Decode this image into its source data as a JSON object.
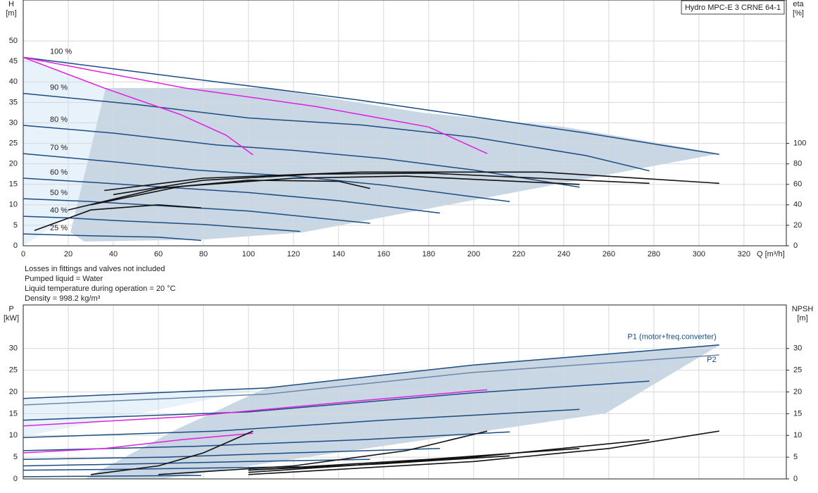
{
  "chart_data": [
    {
      "type": "line",
      "title": "Hydro MPC-E 3 CRNE 64-1",
      "ylabel": "H",
      "yunit": "[m]",
      "y2label": "eta",
      "y2unit": "[%]",
      "xlabel": "Q [m³/h]",
      "xlim": [
        0,
        338.8
      ],
      "xticks": [
        0,
        20,
        40,
        60,
        80,
        100,
        120,
        140,
        160,
        180,
        200,
        220,
        240,
        260,
        280,
        300,
        320
      ],
      "ylim": [
        0,
        60
      ],
      "yticks": [
        0,
        5,
        10,
        15,
        20,
        25,
        30,
        35,
        40,
        45,
        50
      ],
      "y2lim": [
        0,
        240
      ],
      "y2ticks": [
        0,
        20,
        40,
        60,
        80,
        100
      ],
      "grid": true,
      "series": [
        {
          "name": "100 %",
          "color": "#1b4c82",
          "x": [
            0,
            50,
            108,
            150,
            200,
            250,
            309
          ],
          "values": [
            46,
            42.5,
            38.5,
            35.5,
            31.5,
            27.5,
            22.3
          ]
        },
        {
          "name": "90 %",
          "color": "#1b4c82",
          "x": [
            0,
            50,
            100,
            150,
            200,
            250,
            278
          ],
          "values": [
            37.2,
            34.5,
            31.2,
            29.5,
            26.5,
            22,
            18.3
          ]
        },
        {
          "name": "80 %",
          "color": "#1b4c82",
          "x": [
            0,
            40,
            86,
            120,
            160,
            200,
            247
          ],
          "values": [
            29.4,
            27.5,
            24.6,
            23.3,
            21.3,
            18.5,
            14.3
          ]
        },
        {
          "name": "70 %",
          "color": "#1b4c82",
          "x": [
            0,
            40,
            76,
            120,
            160,
            216
          ],
          "values": [
            22.5,
            20.5,
            18.5,
            17,
            14.8,
            10.8
          ]
        },
        {
          "name": "60 %",
          "color": "#1b4c82",
          "x": [
            0,
            30,
            63,
            100,
            140,
            185
          ],
          "values": [
            16.5,
            15.5,
            14.3,
            13,
            11,
            8
          ]
        },
        {
          "name": "50 %",
          "color": "#1b4c82",
          "x": [
            0,
            30,
            54,
            100,
            154
          ],
          "values": [
            11.5,
            10.8,
            10,
            8.5,
            5.5
          ]
        },
        {
          "name": "40 %",
          "color": "#1b4c82",
          "x": [
            0,
            20,
            43,
            80,
            123
          ],
          "values": [
            7.2,
            6.8,
            6.1,
            5.2,
            3.5
          ]
        },
        {
          "name": "25 %",
          "color": "#1b4c82",
          "x": [
            0,
            26,
            60,
            79
          ],
          "values": [
            2.9,
            2.5,
            2.1,
            1.3
          ]
        },
        {
          "color": "#e020e0",
          "x": [
            0,
            36,
            70,
            90,
            102
          ],
          "values": [
            46,
            38.5,
            32,
            27,
            22.2
          ]
        },
        {
          "color": "#e020e0",
          "x": [
            0,
            72,
            130,
            180,
            206
          ],
          "values": [
            46,
            38.5,
            34,
            29,
            22.5
          ]
        },
        {
          "color": "#111111",
          "axis": "y2",
          "x": [
            36,
            80,
            150,
            230,
            309
          ],
          "values": [
            54,
            66,
            72,
            72,
            61
          ]
        },
        {
          "color": "#111111",
          "axis": "y2",
          "x": [
            40,
            80,
            130,
            180,
            278
          ],
          "values": [
            50,
            64,
            70,
            71,
            61
          ]
        },
        {
          "color": "#111111",
          "axis": "y2",
          "x": [
            30,
            70,
            120,
            170,
            247
          ],
          "values": [
            40,
            58,
            66,
            68,
            60
          ]
        },
        {
          "color": "#111111",
          "axis": "y2",
          "x": [
            20,
            60,
            100,
            140,
            154
          ],
          "values": [
            35,
            56,
            64,
            63,
            56
          ]
        },
        {
          "color": "#111111",
          "axis": "y2",
          "x": [
            5,
            30,
            60,
            79
          ],
          "values": [
            15,
            35,
            40,
            37
          ]
        }
      ],
      "notes": [
        "Losses in fittings and valves not included",
        "Pumped liquid = Water",
        "Liquid temperature during operation = 20 °C",
        "Density = 998.2 kg/m³"
      ]
    },
    {
      "type": "line",
      "ylabel": "P",
      "yunit": "[kW]",
      "y2label": "NPSH",
      "y2unit": "[m]",
      "xlim": [
        0,
        338.8
      ],
      "ylim": [
        0,
        40
      ],
      "yticks": [
        0,
        5,
        10,
        15,
        20,
        25,
        30
      ],
      "y2lim": [
        0,
        40
      ],
      "y2ticks": [
        0,
        5,
        10,
        15,
        20,
        25,
        30
      ],
      "grid": true,
      "series": [
        {
          "name": "P1 (motor+freq.converter)",
          "color": "#1b4c82",
          "x": [
            0,
            108,
            200,
            309
          ],
          "values": [
            18.5,
            20.9,
            26.2,
            30.8
          ]
        },
        {
          "name": "P2",
          "color": "#6a88aa",
          "x": [
            0,
            108,
            200,
            309
          ],
          "values": [
            17,
            19.5,
            24.5,
            28.5
          ]
        },
        {
          "color": "#1b4c82",
          "x": [
            0,
            100,
            200,
            278
          ],
          "values": [
            13.5,
            15.4,
            19.8,
            22.5
          ]
        },
        {
          "color": "#1b4c82",
          "x": [
            0,
            86,
            160,
            247
          ],
          "values": [
            9.5,
            11,
            13.5,
            16
          ]
        },
        {
          "color": "#1b4c82",
          "x": [
            0,
            76,
            150,
            216
          ],
          "values": [
            6.5,
            7.5,
            9,
            10.8
          ]
        },
        {
          "color": "#1b4c82",
          "x": [
            0,
            63,
            120,
            185
          ],
          "values": [
            4.5,
            5,
            6,
            7
          ]
        },
        {
          "color": "#1b4c82",
          "x": [
            0,
            54,
            100,
            154
          ],
          "values": [
            3,
            3.5,
            4,
            4.5
          ]
        },
        {
          "color": "#1b4c82",
          "x": [
            0,
            43,
            80,
            123
          ],
          "values": [
            2,
            2.2,
            2.5,
            2.8
          ]
        },
        {
          "color": "#1b4c82",
          "x": [
            0,
            26,
            50,
            79
          ],
          "values": [
            0.5,
            0.6,
            0.7,
            0.8
          ]
        },
        {
          "color": "#e020e0",
          "x": [
            0,
            72,
            150,
            206
          ],
          "values": [
            12.2,
            14.3,
            18,
            20.5
          ]
        },
        {
          "color": "#e020e0",
          "x": [
            0,
            36,
            70,
            102
          ],
          "values": [
            6,
            7,
            9,
            10.5
          ]
        },
        {
          "color": "#111111",
          "axis": "y2",
          "x": [
            30,
            60,
            80,
            102
          ],
          "values": [
            1,
            3,
            6,
            11
          ]
        },
        {
          "color": "#111111",
          "axis": "y2",
          "x": [
            60,
            120,
            170,
            206
          ],
          "values": [
            1,
            3,
            6.5,
            11
          ]
        },
        {
          "color": "#111111",
          "axis": "y2",
          "x": [
            100,
            200,
            260,
            309
          ],
          "values": [
            1,
            4,
            7,
            11
          ]
        },
        {
          "color": "#111111",
          "axis": "y2",
          "x": [
            100,
            200,
            278
          ],
          "values": [
            1.5,
            5,
            9
          ]
        },
        {
          "color": "#111111",
          "axis": "y2",
          "x": [
            100,
            180,
            247
          ],
          "values": [
            2,
            4.5,
            7
          ]
        },
        {
          "color": "#111111",
          "axis": "y2",
          "x": [
            100,
            160,
            216
          ],
          "values": [
            2,
            3.5,
            5.3
          ]
        }
      ]
    }
  ]
}
